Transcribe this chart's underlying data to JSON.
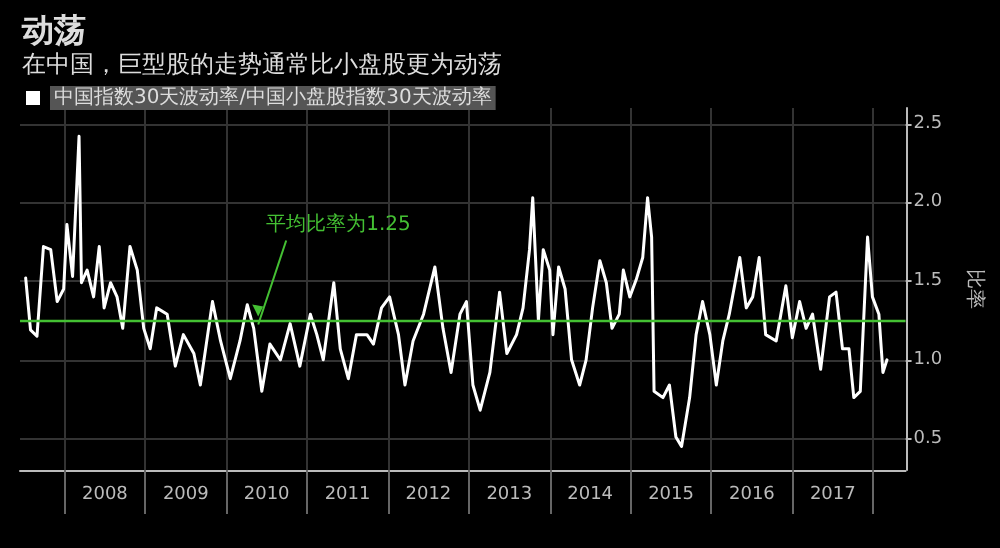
{
  "chart_data": {
    "type": "line",
    "title": "动荡",
    "subtitle": "在中国，巨型股的走势通常比小盘股更为动荡",
    "ylabel": "比率",
    "x": [
      2007.52,
      2007.58,
      2007.66,
      2007.74,
      2007.83,
      2007.91,
      2007.99,
      2008.03,
      2008.1,
      2008.18,
      2008.21,
      2008.28,
      2008.36,
      2008.43,
      2008.49,
      2008.57,
      2008.65,
      2008.72,
      2008.81,
      2008.9,
      2008.98,
      2009.06,
      2009.14,
      2009.27,
      2009.37,
      2009.47,
      2009.6,
      2009.68,
      2009.83,
      2009.93,
      2010.05,
      2010.17,
      2010.26,
      2010.34,
      2010.44,
      2010.54,
      2010.67,
      2010.79,
      2010.91,
      2011.04,
      2011.12,
      2011.2,
      2011.33,
      2011.41,
      2011.51,
      2011.61,
      2011.74,
      2011.82,
      2011.92,
      2012.02,
      2012.13,
      2012.21,
      2012.31,
      2012.44,
      2012.58,
      2012.68,
      2012.78,
      2012.89,
      2012.97,
      2013.05,
      2013.14,
      2013.26,
      2013.38,
      2013.47,
      2013.59,
      2013.67,
      2013.75,
      2013.79,
      2013.86,
      2013.92,
      2014.0,
      2014.04,
      2014.11,
      2014.19,
      2014.27,
      2014.37,
      2014.45,
      2014.53,
      2014.62,
      2014.7,
      2014.77,
      2014.86,
      2014.91,
      2014.99,
      2015.07,
      2015.15,
      2015.21,
      2015.26,
      2015.29,
      2015.4,
      2015.48,
      2015.56,
      2015.63,
      2015.73,
      2015.81,
      2015.89,
      2015.98,
      2016.06,
      2016.14,
      2016.22,
      2016.35,
      2016.43,
      2016.51,
      2016.59,
      2016.67,
      2016.8,
      2016.92,
      2017.0,
      2017.09,
      2017.17,
      2017.25,
      2017.35,
      2017.46,
      2017.54,
      2017.62,
      2017.7,
      2017.76,
      2017.84,
      2017.93,
      2017.99,
      2018.07,
      2018.12,
      2018.17
    ],
    "series": [
      {
        "name": "中国指数30天波动率/中国小盘股指数30天波动率",
        "color": "#ffffff",
        "values": [
          1.52,
          1.19,
          1.15,
          1.72,
          1.7,
          1.37,
          1.45,
          1.86,
          1.53,
          2.42,
          1.49,
          1.57,
          1.4,
          1.72,
          1.33,
          1.49,
          1.4,
          1.2,
          1.72,
          1.57,
          1.2,
          1.07,
          1.33,
          1.29,
          0.96,
          1.16,
          1.04,
          0.84,
          1.37,
          1.12,
          0.88,
          1.12,
          1.35,
          1.2,
          0.8,
          1.1,
          1.0,
          1.23,
          0.96,
          1.29,
          1.16,
          1.0,
          1.49,
          1.07,
          0.88,
          1.16,
          1.16,
          1.1,
          1.33,
          1.4,
          1.16,
          0.84,
          1.12,
          1.29,
          1.59,
          1.2,
          0.92,
          1.29,
          1.37,
          0.84,
          0.68,
          0.92,
          1.43,
          1.04,
          1.16,
          1.33,
          1.7,
          2.03,
          1.25,
          1.7,
          1.57,
          1.16,
          1.59,
          1.45,
          1.0,
          0.84,
          1.0,
          1.33,
          1.63,
          1.49,
          1.2,
          1.29,
          1.57,
          1.4,
          1.51,
          1.65,
          2.03,
          1.78,
          0.8,
          0.76,
          0.84,
          0.51,
          0.45,
          0.76,
          1.16,
          1.37,
          1.16,
          0.84,
          1.12,
          1.29,
          1.65,
          1.33,
          1.4,
          1.65,
          1.16,
          1.12,
          1.47,
          1.14,
          1.37,
          1.2,
          1.29,
          0.94,
          1.4,
          1.43,
          1.07,
          1.07,
          0.76,
          0.8,
          1.78,
          1.4,
          1.29,
          0.92,
          1.0
        ]
      }
    ],
    "xlim": [
      2007.45,
      2018.4
    ],
    "xticks": [
      {
        "value": 2008,
        "label": null
      },
      {
        "value": 2008.5,
        "label": "2008"
      },
      {
        "value": 2009,
        "label": null
      },
      {
        "value": 2009.5,
        "label": "2009"
      },
      {
        "value": 2010,
        "label": null
      },
      {
        "value": 2010.5,
        "label": "2010"
      },
      {
        "value": 2011,
        "label": null
      },
      {
        "value": 2011.5,
        "label": "2011"
      },
      {
        "value": 2012,
        "label": null
      },
      {
        "value": 2012.5,
        "label": "2012"
      },
      {
        "value": 2013,
        "label": null
      },
      {
        "value": 2013.5,
        "label": "2013"
      },
      {
        "value": 2014,
        "label": null
      },
      {
        "value": 2014.5,
        "label": "2014"
      },
      {
        "value": 2015,
        "label": null
      },
      {
        "value": 2015.5,
        "label": "2015"
      },
      {
        "value": 2016,
        "label": null
      },
      {
        "value": 2016.5,
        "label": "2016"
      },
      {
        "value": 2017,
        "label": null
      },
      {
        "value": 2017.5,
        "label": "2017"
      },
      {
        "value": 2018,
        "label": null
      }
    ],
    "ylim": [
      0.3,
      2.6
    ],
    "yticks": [
      0.5,
      {
        "value": 1,
        "label": "1.0"
      },
      1.5,
      {
        "value": 2,
        "label": "2.0"
      },
      2.5
    ],
    "ref_lines": [
      {
        "axis": "y",
        "value": 1.25,
        "label": "平均比率为1.25",
        "color": "#44c033"
      }
    ],
    "grid": true,
    "legend": "top left",
    "marker": "none",
    "line_style": "solid"
  }
}
